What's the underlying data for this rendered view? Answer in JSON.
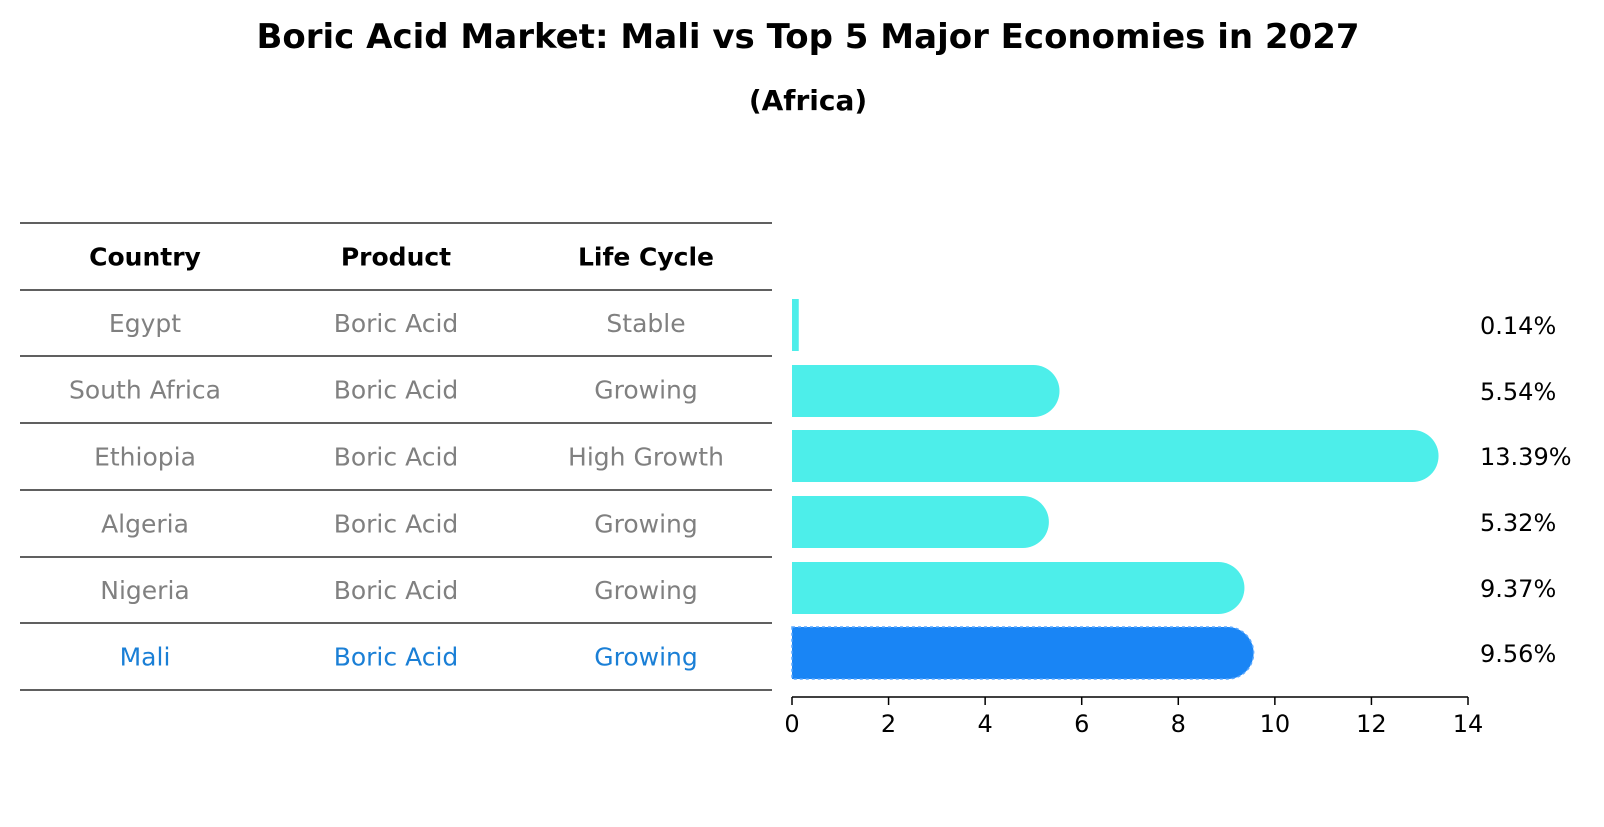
{
  "chart_data": {
    "type": "bar",
    "orientation": "horizontal",
    "title": "Boric Acid Market: Mali vs Top 5 Major Economies in 2027",
    "subtitle": "(Africa)",
    "table": {
      "headers": [
        "Country",
        "Product",
        "Life Cycle"
      ],
      "rows": [
        [
          "Egypt",
          "Boric Acid",
          "Stable"
        ],
        [
          "South Africa",
          "Boric Acid",
          "Growing"
        ],
        [
          "Ethiopia",
          "Boric Acid",
          "High Growth"
        ],
        [
          "Algeria",
          "Boric Acid",
          "Growing"
        ],
        [
          "Nigeria",
          "Boric Acid",
          "Growing"
        ],
        [
          "Mali",
          "Boric Acid",
          "Growing"
        ]
      ]
    },
    "categories": [
      "Egypt",
      "South Africa",
      "Ethiopia",
      "Algeria",
      "Nigeria",
      "Mali"
    ],
    "values": [
      0.14,
      5.54,
      13.39,
      5.32,
      9.37,
      9.56
    ],
    "value_labels": [
      "0.14%",
      "5.54%",
      "13.39%",
      "5.32%",
      "9.37%",
      "9.56%"
    ],
    "highlight": "Mali",
    "xlim": [
      0,
      14
    ],
    "xticks": [
      "0",
      "2",
      "4",
      "6",
      "8",
      "10",
      "12",
      "14"
    ],
    "grid": false,
    "colors": {
      "bar": "#4deeea",
      "highlight_bar": "#1985f5",
      "highlight_text": "#1a7fd6",
      "row_text": "#808080",
      "header_text": "#000000"
    }
  }
}
